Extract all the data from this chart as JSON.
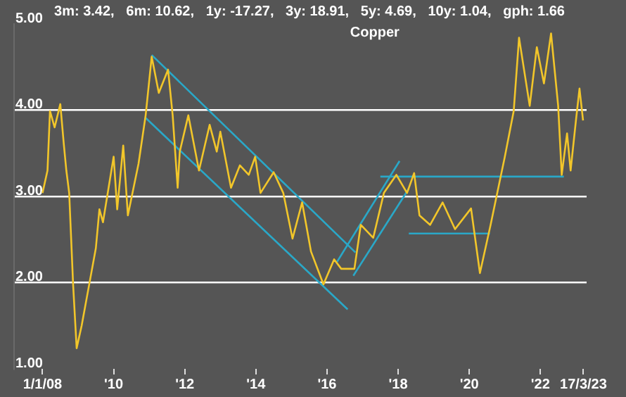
{
  "chart_data": {
    "type": "line",
    "title": "Copper",
    "subtitle": "3m: 3.42,   6m: 10.62,   1y: -17.27,   3y: 18.91,   5y: 4.69,   10y: 1.04,   gph: 1.66",
    "xlim": [
      2007.2,
      2023.3
    ],
    "xticks": [
      {
        "value": 2008,
        "label": "1/1/08"
      },
      {
        "value": 2010,
        "label": "'10"
      },
      {
        "value": 2012,
        "label": "'12"
      },
      {
        "value": 2014,
        "label": "'14"
      },
      {
        "value": 2016,
        "label": "'16"
      },
      {
        "value": 2018,
        "label": "'18"
      },
      {
        "value": 2020,
        "label": "'20"
      },
      {
        "value": 2022,
        "label": "'22"
      },
      {
        "value": 2023.21,
        "label": "17/3/23"
      }
    ],
    "ylim": [
      1,
      5
    ],
    "yticks": [
      {
        "value": 1,
        "label": "1.00"
      },
      {
        "value": 2,
        "label": "2.00"
      },
      {
        "value": 3,
        "label": "3.00"
      },
      {
        "value": 4,
        "label": "4.00"
      },
      {
        "value": 5,
        "label": "5.00"
      }
    ],
    "grid": "y",
    "marker": "none",
    "line_style": "solid",
    "series": [
      {
        "color": "#f2c62a",
        "x": [
          2008.0,
          2008.14,
          2008.21,
          2008.34,
          2008.5,
          2008.6,
          2008.67,
          2008.75,
          2008.86,
          2008.96,
          2009.1,
          2009.3,
          2009.5,
          2009.6,
          2009.7,
          2010.0,
          2010.1,
          2010.27,
          2010.4,
          2010.7,
          2010.9,
          2011.07,
          2011.27,
          2011.53,
          2011.66,
          2011.8,
          2011.86,
          2012.1,
          2012.4,
          2012.7,
          2012.9,
          2013.0,
          2013.3,
          2013.55,
          2013.8,
          2013.98,
          2014.13,
          2014.5,
          2014.77,
          2015.03,
          2015.3,
          2015.55,
          2015.9,
          2016.2,
          2016.4,
          2016.77,
          2016.95,
          2017.3,
          2017.6,
          2017.95,
          2018.25,
          2018.45,
          2018.6,
          2018.9,
          2019.25,
          2019.6,
          2020.05,
          2020.3,
          2020.6,
          2021.0,
          2021.25,
          2021.4,
          2021.7,
          2021.9,
          2022.1,
          2022.3,
          2022.5,
          2022.6,
          2022.75,
          2022.85,
          2023.0,
          2023.1,
          2023.2
        ],
        "values": [
          3.04,
          3.3,
          3.99,
          3.8,
          4.07,
          3.6,
          3.3,
          3.04,
          1.98,
          1.24,
          1.5,
          1.95,
          2.4,
          2.85,
          2.7,
          3.46,
          2.85,
          3.59,
          2.78,
          3.38,
          3.94,
          4.62,
          4.2,
          4.47,
          3.94,
          3.1,
          3.52,
          3.94,
          3.3,
          3.83,
          3.52,
          3.75,
          3.1,
          3.36,
          3.25,
          3.46,
          3.04,
          3.28,
          3.04,
          2.51,
          2.93,
          2.36,
          1.98,
          2.27,
          2.16,
          2.16,
          2.67,
          2.52,
          3.04,
          3.25,
          3.04,
          3.27,
          2.78,
          2.67,
          2.93,
          2.62,
          2.86,
          2.11,
          2.67,
          3.46,
          3.99,
          4.84,
          4.05,
          4.73,
          4.31,
          4.89,
          4.05,
          3.25,
          3.73,
          3.3,
          3.88,
          4.25,
          3.88
        ]
      },
      {
        "type": "line",
        "color": "#2aa8c8",
        "x": [
          2011.07,
          2016.8
        ],
        "values": [
          4.64,
          2.35
        ]
      },
      {
        "type": "line",
        "color": "#2aa8c8",
        "x": [
          2010.9,
          2016.58
        ],
        "values": [
          3.91,
          1.69
        ]
      },
      {
        "type": "line",
        "color": "#2aa8c8",
        "x": [
          2016.74,
          2018.3
        ],
        "values": [
          2.08,
          3.09
        ]
      },
      {
        "type": "line",
        "color": "#2aa8c8",
        "x": [
          2016.28,
          2018.04
        ],
        "values": [
          2.24,
          3.41
        ]
      },
      {
        "type": "line",
        "color": "#2aa8c8",
        "x": [
          2017.5,
          2022.66
        ],
        "values": [
          3.23,
          3.23
        ]
      },
      {
        "type": "line",
        "color": "#2aa8c8",
        "x": [
          2018.3,
          2020.58
        ],
        "values": [
          2.57,
          2.57
        ]
      }
    ]
  }
}
